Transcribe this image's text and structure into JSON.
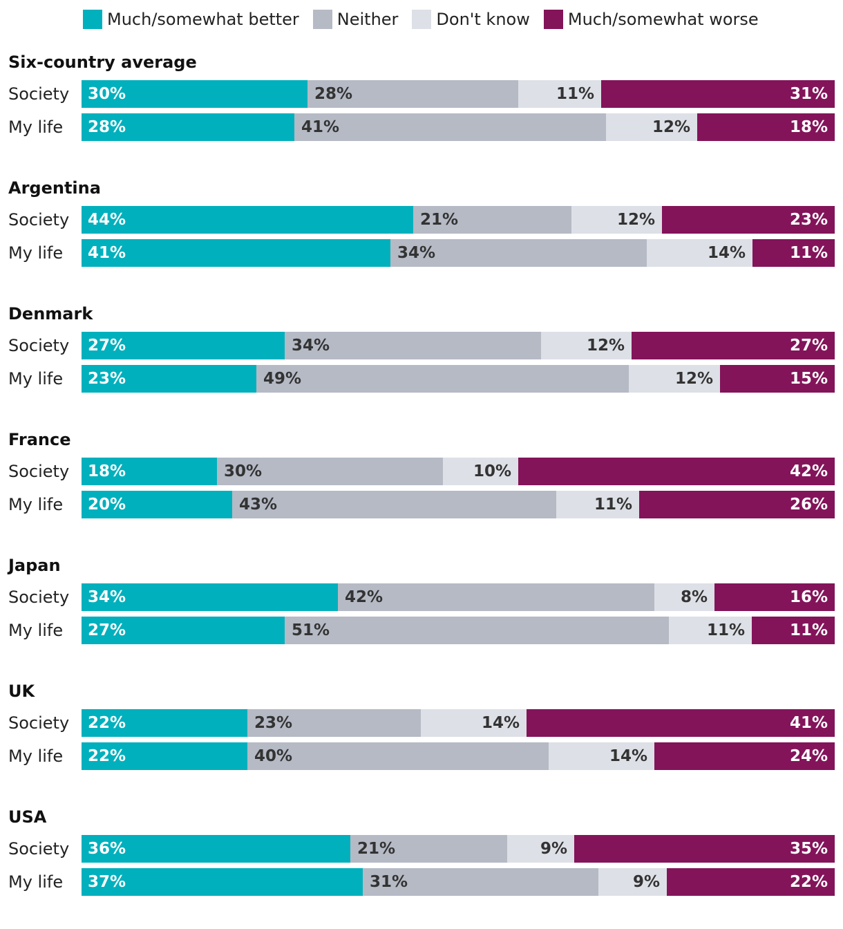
{
  "colors": {
    "better": "#00B0BD",
    "neither": "#B5BAC5",
    "dont_know": "#DDE0E6",
    "worse": "#83145A"
  },
  "legend": {
    "better": "Much/somewhat better",
    "neither": "Neither",
    "dont_know": "Don't know",
    "worse": "Much/somewhat worse"
  },
  "chart_data": {
    "type": "bar",
    "orientation": "horizontal",
    "stacked": true,
    "title": "",
    "legend_position": "top",
    "series": [
      {
        "key": "better",
        "name": "Much/somewhat better"
      },
      {
        "key": "neither",
        "name": "Neither"
      },
      {
        "key": "dont_know",
        "name": "Don't know"
      },
      {
        "key": "worse",
        "name": "Much/somewhat worse"
      }
    ],
    "groups": [
      {
        "name": "Six-country average",
        "rows": [
          {
            "label": "Society",
            "values": [
              30,
              28,
              11,
              31
            ],
            "labels": [
              "30%",
              "28%",
              "11%",
              "31%"
            ]
          },
          {
            "label": "My life",
            "values": [
              28,
              41,
              12,
              18
            ],
            "labels": [
              "28%",
              "41%",
              "12%",
              "18%"
            ]
          }
        ]
      },
      {
        "name": "Argentina",
        "rows": [
          {
            "label": "Society",
            "values": [
              44,
              21,
              12,
              23
            ],
            "labels": [
              "44%",
              "21%",
              "12%",
              "23%"
            ]
          },
          {
            "label": "My life",
            "values": [
              41,
              34,
              14,
              11
            ],
            "labels": [
              "41%",
              "34%",
              "14%",
              "11%"
            ]
          }
        ]
      },
      {
        "name": "Denmark",
        "rows": [
          {
            "label": "Society",
            "values": [
              27,
              34,
              12,
              27
            ],
            "labels": [
              "27%",
              "34%",
              "12%",
              "27%"
            ]
          },
          {
            "label": "My life",
            "values": [
              23,
              49,
              12,
              15
            ],
            "labels": [
              "23%",
              "49%",
              "12%",
              "15%"
            ]
          }
        ]
      },
      {
        "name": "France",
        "rows": [
          {
            "label": "Society",
            "values": [
              18,
              30,
              10,
              42
            ],
            "labels": [
              "18%",
              "30%",
              "10%",
              "42%"
            ]
          },
          {
            "label": "My life",
            "values": [
              20,
              43,
              11,
              26
            ],
            "labels": [
              "20%",
              "43%",
              "11%",
              "26%"
            ]
          }
        ]
      },
      {
        "name": "Japan",
        "rows": [
          {
            "label": "Society",
            "values": [
              34,
              42,
              8,
              16
            ],
            "labels": [
              "34%",
              "42%",
              "8%",
              "16%"
            ]
          },
          {
            "label": "My life",
            "values": [
              27,
              51,
              11,
              11
            ],
            "labels": [
              "27%",
              "51%",
              "11%",
              "11%"
            ]
          }
        ]
      },
      {
        "name": "UK",
        "rows": [
          {
            "label": "Society",
            "values": [
              22,
              23,
              14,
              41
            ],
            "labels": [
              "22%",
              "23%",
              "14%",
              "41%"
            ]
          },
          {
            "label": "My life",
            "values": [
              22,
              40,
              14,
              24
            ],
            "labels": [
              "22%",
              "40%",
              "14%",
              "24%"
            ]
          }
        ]
      },
      {
        "name": "USA",
        "rows": [
          {
            "label": "Society",
            "values": [
              36,
              21,
              9,
              35
            ],
            "labels": [
              "36%",
              "21%",
              "9%",
              "35%"
            ]
          },
          {
            "label": "My life",
            "values": [
              37,
              31,
              9,
              22
            ],
            "labels": [
              "37%",
              "31%",
              "9%",
              "22%"
            ]
          }
        ]
      }
    ]
  }
}
